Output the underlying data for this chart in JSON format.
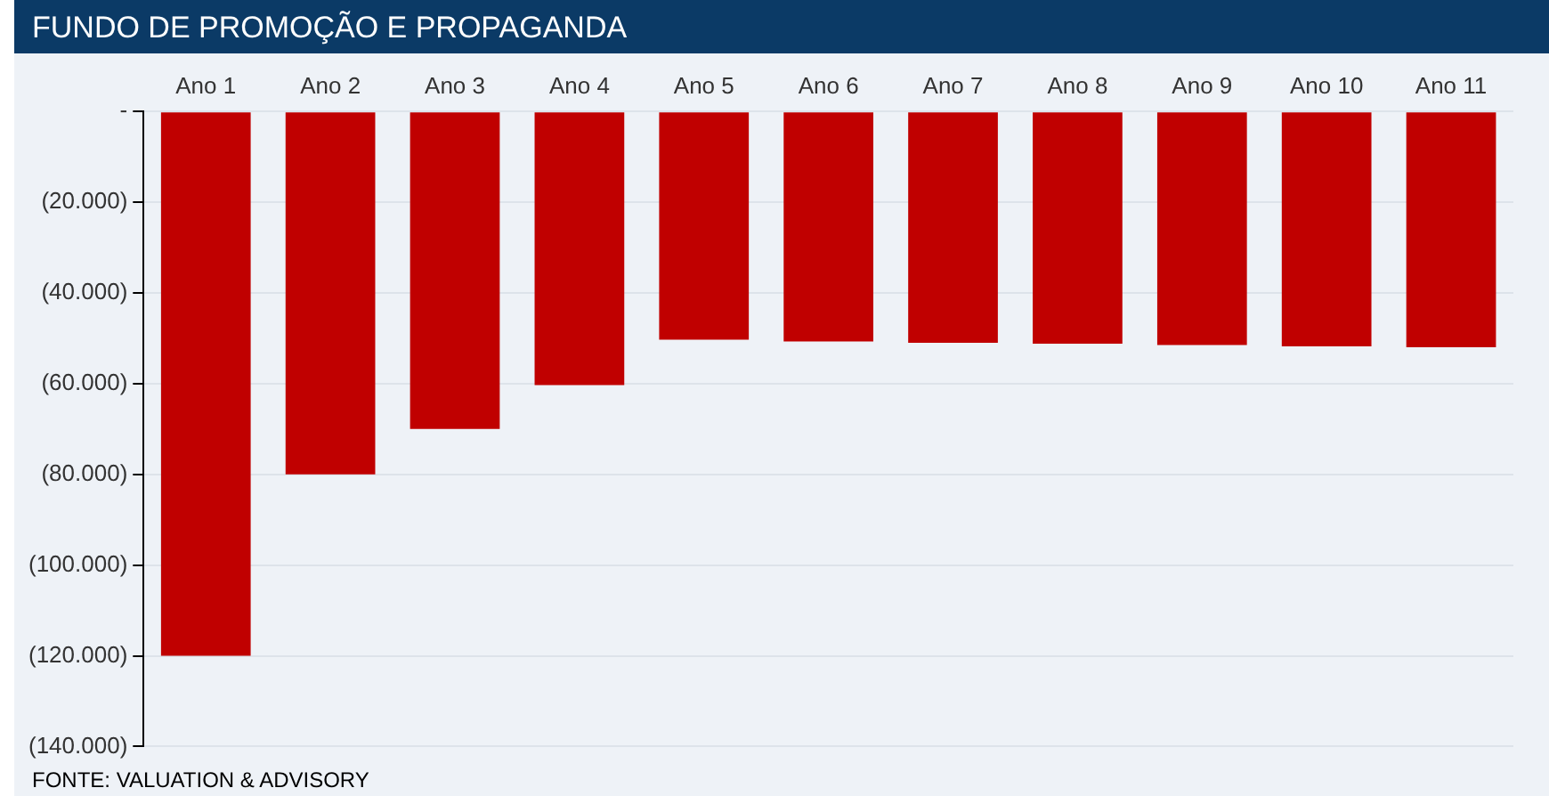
{
  "chart_data": {
    "type": "bar",
    "title": "FUNDO DE PROMOÇÃO E PROPAGANDA",
    "categories": [
      "Ano 1",
      "Ano 2",
      "Ano 3",
      "Ano 4",
      "Ano 5",
      "Ano 6",
      "Ano 7",
      "Ano 8",
      "Ano 9",
      "Ano 10",
      "Ano 11"
    ],
    "values": [
      -120000,
      -80000,
      -70000,
      -60300,
      -50300,
      -50700,
      -51000,
      -51200,
      -51500,
      -51800,
      -52000
    ],
    "color": "#c00000",
    "ylim": [
      -140000,
      0
    ],
    "yticks": [
      {
        "value": 0,
        "label": "-"
      },
      {
        "value": -20000,
        "label": "(20.000)"
      },
      {
        "value": -40000,
        "label": "(40.000)"
      },
      {
        "value": -60000,
        "label": "(60.000)"
      },
      {
        "value": -80000,
        "label": "(80.000)"
      },
      {
        "value": -100000,
        "label": "(100.000)"
      },
      {
        "value": -120000,
        "label": "(120.000)"
      },
      {
        "value": -140000,
        "label": "(140.000)"
      }
    ],
    "grid": "y",
    "annotations": [
      "FONTE: VALUATION & ADVISORY"
    ]
  }
}
